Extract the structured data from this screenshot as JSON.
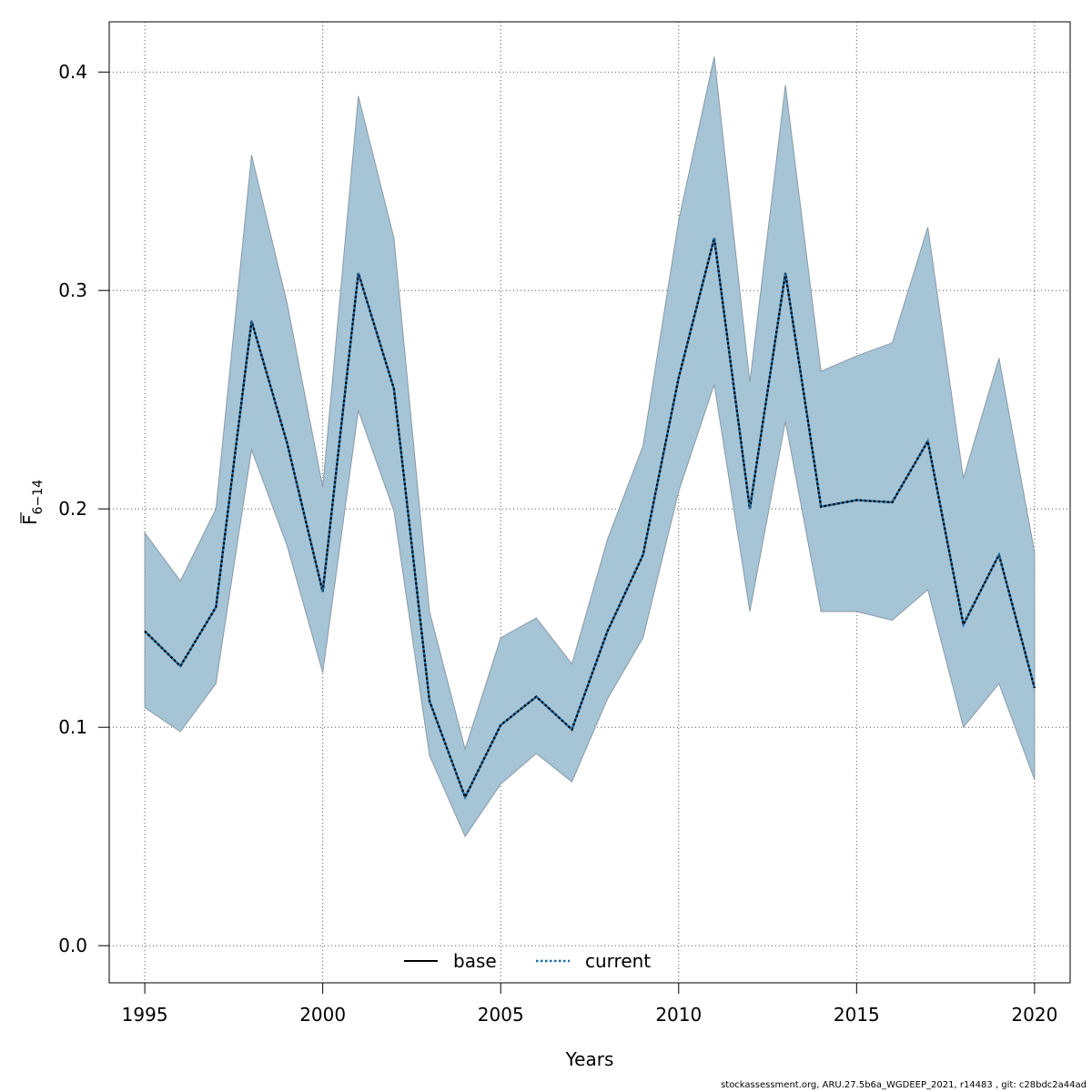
{
  "chart_data": {
    "type": "line",
    "title": "",
    "xlabel": "Years",
    "ylabel": "F̄ 6−14",
    "ylabel_main": "F",
    "ylabel_sub": "6−14",
    "xlim": [
      1994,
      2021
    ],
    "ylim": [
      -0.017,
      0.423
    ],
    "xticks": [
      1995,
      2000,
      2005,
      2010,
      2015,
      2020
    ],
    "yticks": [
      0.0,
      0.1,
      0.2,
      0.3,
      0.4
    ],
    "ytick_labels": [
      "0.0",
      "0.1",
      "0.2",
      "0.3",
      "0.4"
    ],
    "grid": true,
    "legend_position": "bottom-center",
    "x": [
      1995,
      1996,
      1997,
      1998,
      1999,
      2000,
      2001,
      2002,
      2003,
      2004,
      2005,
      2006,
      2007,
      2008,
      2009,
      2010,
      2011,
      2012,
      2013,
      2014,
      2015,
      2016,
      2017,
      2018,
      2019,
      2020
    ],
    "series": [
      {
        "name": "base",
        "style": "solid",
        "color": "#000000",
        "values": [
          0.144,
          0.128,
          0.155,
          0.286,
          0.23,
          0.162,
          0.308,
          0.255,
          0.112,
          0.068,
          0.101,
          0.114,
          0.099,
          0.144,
          0.179,
          0.26,
          0.324,
          0.2,
          0.308,
          0.201,
          0.204,
          0.203,
          0.231,
          0.147,
          0.179,
          0.118
        ]
      },
      {
        "name": "current",
        "style": "dotted",
        "color": "#1a6da8",
        "values": [
          0.144,
          0.128,
          0.155,
          0.286,
          0.23,
          0.162,
          0.308,
          0.255,
          0.112,
          0.068,
          0.101,
          0.114,
          0.099,
          0.144,
          0.179,
          0.26,
          0.324,
          0.2,
          0.308,
          0.201,
          0.204,
          0.203,
          0.231,
          0.147,
          0.179,
          0.118
        ]
      }
    ],
    "band": {
      "color": "#a5c4d6",
      "lower": [
        0.109,
        0.098,
        0.12,
        0.227,
        0.183,
        0.125,
        0.245,
        0.199,
        0.087,
        0.05,
        0.074,
        0.088,
        0.075,
        0.113,
        0.141,
        0.208,
        0.257,
        0.153,
        0.24,
        0.153,
        0.153,
        0.149,
        0.163,
        0.1,
        0.12,
        0.076
      ],
      "upper": [
        0.189,
        0.167,
        0.2,
        0.362,
        0.294,
        0.21,
        0.389,
        0.324,
        0.153,
        0.09,
        0.141,
        0.15,
        0.129,
        0.186,
        0.229,
        0.332,
        0.407,
        0.258,
        0.394,
        0.263,
        0.27,
        0.276,
        0.329,
        0.214,
        0.269,
        0.18
      ]
    }
  },
  "footer_text": "stockassessment.org, ARU.27.5b6a_WGDEEP_2021, r14483 , git: c28bdc2a44ad"
}
